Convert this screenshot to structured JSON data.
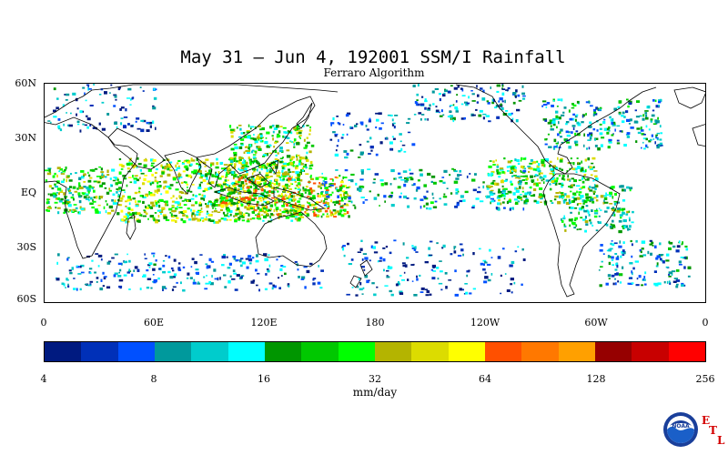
{
  "title": "May 31 – Jun 4, 192001 SSM/I Rainfall",
  "subtitle": "Ferraro Algorithm",
  "lat_labels": [
    "60N",
    "30N",
    "EQ",
    "30S",
    "60S"
  ],
  "lon_labels": [
    "0",
    "60E",
    "120E",
    "180",
    "120W",
    "60W",
    "0"
  ],
  "colorbar": {
    "colors": [
      "#001a80",
      "#0030b8",
      "#0050ff",
      "#00999c",
      "#00cccc",
      "#00ffff",
      "#009600",
      "#00c800",
      "#00ff00",
      "#b4b400",
      "#dcdc00",
      "#ffff00",
      "#ff5000",
      "#ff7800",
      "#ffa000",
      "#960000",
      "#c80000",
      "#ff0000"
    ],
    "tick_labels": [
      "4",
      "8",
      "16",
      "32",
      "64",
      "128",
      "256"
    ],
    "units": "mm/day"
  },
  "logo": {
    "name": "NOAA",
    "letters": [
      "E",
      "T",
      "L"
    ]
  },
  "chart_data": {
    "type": "heatmap",
    "title": "May 31 – Jun 4, 192001 SSM/I Rainfall",
    "subtitle": "Ferraro Algorithm",
    "x_range_deg_east": [
      0,
      360
    ],
    "y_range_deg_lat": [
      -60,
      60
    ],
    "colorbar_scale": "log2",
    "colorbar_range": [
      4,
      256
    ],
    "units": "mm/day",
    "rain_bands": [
      {
        "lon": [
          40,
          140
        ],
        "lat": [
          -15,
          20
        ],
        "intensity": 32,
        "density": 0.5
      },
      {
        "lon": [
          95,
          165
        ],
        "lat": [
          -12,
          10
        ],
        "intensity": 45,
        "density": 0.6
      },
      {
        "lon": [
          100,
          145
        ],
        "lat": [
          10,
          38
        ],
        "intensity": 28,
        "density": 0.45
      },
      {
        "lon": [
          0,
          40
        ],
        "lat": [
          -10,
          15
        ],
        "intensity": 24,
        "density": 0.45
      },
      {
        "lon": [
          150,
          270
        ],
        "lat": [
          -8,
          14
        ],
        "intensity": 14,
        "density": 0.18
      },
      {
        "lon": [
          240,
          300
        ],
        "lat": [
          -5,
          20
        ],
        "intensity": 26,
        "density": 0.45
      },
      {
        "lon": [
          280,
          320
        ],
        "lat": [
          -20,
          5
        ],
        "intensity": 20,
        "density": 0.35
      },
      {
        "lon": [
          270,
          335
        ],
        "lat": [
          25,
          52
        ],
        "intensity": 14,
        "density": 0.3
      },
      {
        "lon": [
          200,
          260
        ],
        "lat": [
          40,
          60
        ],
        "intensity": 10,
        "density": 0.25
      },
      {
        "lon": [
          0,
          60
        ],
        "lat": [
          35,
          60
        ],
        "intensity": 9,
        "density": 0.15
      },
      {
        "lon": [
          5,
          150
        ],
        "lat": [
          -52,
          -32
        ],
        "intensity": 9,
        "density": 0.18
      },
      {
        "lon": [
          160,
          260
        ],
        "lat": [
          -55,
          -25
        ],
        "intensity": 8,
        "density": 0.12
      },
      {
        "lon": [
          300,
          350
        ],
        "lat": [
          -50,
          -25
        ],
        "intensity": 12,
        "density": 0.25
      },
      {
        "lon": [
          155,
          200
        ],
        "lat": [
          20,
          45
        ],
        "intensity": 9,
        "density": 0.15
      }
    ]
  }
}
